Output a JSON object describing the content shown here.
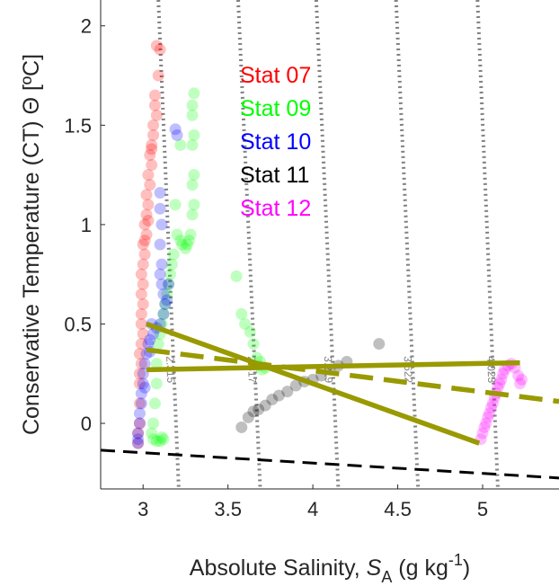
{
  "chart_data": {
    "type": "scatter",
    "xlabel": {
      "main": "Absolute Salinity, ",
      "sym": "S",
      "sub": "A",
      "unit_pre": " (g kg",
      "sup": "-1",
      "unit_post": ")"
    },
    "ylabel": "Conservative Temperature (CT) Θ [ºC]",
    "xlim": [
      2.75,
      5.45
    ],
    "ylim": [
      -0.33,
      2.13
    ],
    "xticks": [
      {
        "value": 3,
        "label": "3"
      },
      {
        "value": 3.5,
        "label": "3.5"
      },
      {
        "value": 4,
        "label": "4"
      },
      {
        "value": 4.5,
        "label": "4.5"
      },
      {
        "value": 5,
        "label": "5"
      }
    ],
    "yticks": [
      {
        "value": 0,
        "label": "0"
      },
      {
        "value": 0.5,
        "label": "0.5"
      },
      {
        "value": 1,
        "label": "1"
      },
      {
        "value": 1.5,
        "label": "1.5"
      },
      {
        "value": 2,
        "label": "2"
      }
    ],
    "grid": false,
    "legend_position": "top-center",
    "density_contours": [
      {
        "label": "2.315",
        "label_pos": [
          3.14,
          0.27
        ],
        "points": [
          [
            3.09,
            2.13
          ],
          [
            3.21,
            -0.33
          ]
        ]
      },
      {
        "label": "2.817",
        "label_pos": [
          3.62,
          0.27
        ],
        "points": [
          [
            3.56,
            2.13
          ],
          [
            3.69,
            -0.33
          ]
        ]
      },
      {
        "label": "3.219",
        "label_pos": [
          4.07,
          0.27
        ],
        "points": [
          [
            4.02,
            2.13
          ],
          [
            4.15,
            -0.33
          ]
        ]
      },
      {
        "label": "3.622",
        "label_pos": [
          4.54,
          0.27
        ],
        "points": [
          [
            4.49,
            2.13
          ],
          [
            4.62,
            -0.33
          ]
        ]
      },
      {
        "label": "4.023",
        "label_pos": [
          5.03,
          0.27
        ],
        "points": [
          [
            4.97,
            2.13
          ],
          [
            5.09,
            -0.33
          ]
        ]
      }
    ],
    "freezing_line": {
      "color": "#000000",
      "points": [
        [
          2.75,
          -0.135
        ],
        [
          5.45,
          -0.275
        ]
      ]
    },
    "mixing_lines": {
      "color": "#999900",
      "solid": [
        [
          [
            3.02,
            0.27
          ],
          [
            5.22,
            0.305
          ]
        ],
        [
          [
            3.02,
            0.5
          ],
          [
            4.98,
            -0.1
          ]
        ]
      ],
      "dashed": [
        [
          [
            3.02,
            0.37
          ],
          [
            5.45,
            0.11
          ]
        ]
      ]
    },
    "series": [
      {
        "name": "Stat 07",
        "color": "#ff0000",
        "points": [
          [
            3.08,
            1.9
          ],
          [
            3.1,
            1.88
          ],
          [
            3.09,
            1.75
          ],
          [
            3.07,
            1.6
          ],
          [
            3.08,
            1.55
          ],
          [
            3.06,
            1.45
          ],
          [
            3.05,
            1.4
          ],
          [
            3.04,
            1.35
          ],
          [
            3.05,
            1.3
          ],
          [
            3.03,
            1.25
          ],
          [
            3.04,
            1.2
          ],
          [
            3.02,
            1.15
          ],
          [
            3.03,
            1.1
          ],
          [
            3.02,
            1.05
          ],
          [
            3.01,
            1.0
          ],
          [
            3.02,
            0.95
          ],
          [
            3.0,
            0.9
          ],
          [
            3.01,
            0.85
          ],
          [
            3.0,
            0.8
          ],
          [
            2.99,
            0.75
          ],
          [
            3.0,
            0.7
          ],
          [
            2.99,
            0.65
          ],
          [
            3.0,
            0.6
          ],
          [
            2.99,
            0.55
          ],
          [
            2.99,
            0.5
          ],
          [
            3.0,
            0.45
          ],
          [
            2.99,
            0.4
          ],
          [
            2.98,
            0.35
          ],
          [
            2.99,
            0.3
          ],
          [
            2.98,
            0.25
          ],
          [
            2.98,
            0.2
          ],
          [
            2.98,
            0.1
          ],
          [
            2.98,
            0.0
          ],
          [
            2.97,
            -0.05
          ],
          [
            2.97,
            -0.1
          ],
          [
            3.06,
            1.5
          ],
          [
            3.05,
            1.38
          ],
          [
            3.07,
            1.65
          ],
          [
            3.01,
            0.92
          ],
          [
            3.03,
            1.02
          ]
        ]
      },
      {
        "name": "Stat 09",
        "color": "#00ff00",
        "points": [
          [
            3.3,
            1.66
          ],
          [
            3.29,
            1.6
          ],
          [
            3.29,
            1.55
          ],
          [
            3.3,
            1.45
          ],
          [
            3.29,
            1.4
          ],
          [
            3.3,
            1.25
          ],
          [
            3.29,
            1.2
          ],
          [
            3.3,
            1.1
          ],
          [
            3.29,
            1.05
          ],
          [
            3.28,
            0.95
          ],
          [
            3.27,
            0.92
          ],
          [
            3.26,
            0.9
          ],
          [
            3.25,
            0.88
          ],
          [
            3.23,
            0.9
          ],
          [
            3.22,
            0.92
          ],
          [
            3.2,
            0.95
          ],
          [
            3.18,
            0.85
          ],
          [
            3.17,
            0.8
          ],
          [
            3.16,
            0.75
          ],
          [
            3.15,
            0.7
          ],
          [
            3.14,
            0.65
          ],
          [
            3.13,
            0.6
          ],
          [
            3.12,
            0.55
          ],
          [
            3.11,
            0.5
          ],
          [
            3.1,
            0.45
          ],
          [
            3.09,
            0.4
          ],
          [
            3.08,
            0.3
          ],
          [
            3.08,
            0.2
          ],
          [
            3.07,
            0.1
          ],
          [
            3.06,
            0.0
          ],
          [
            3.05,
            -0.05
          ],
          [
            3.06,
            -0.08
          ],
          [
            3.08,
            -0.09
          ],
          [
            3.1,
            -0.09
          ],
          [
            3.11,
            -0.07
          ],
          [
            3.12,
            -0.08
          ],
          [
            3.55,
            0.74
          ],
          [
            3.58,
            0.55
          ],
          [
            3.6,
            0.5
          ],
          [
            3.63,
            0.46
          ],
          [
            3.65,
            0.4
          ],
          [
            3.67,
            0.33
          ],
          [
            3.68,
            0.29
          ],
          [
            3.7,
            0.27
          ],
          [
            3.72,
            0.28
          ],
          [
            3.69,
            0.31
          ],
          [
            3.22,
            1.4
          ],
          [
            3.19,
            1.1
          ]
        ]
      },
      {
        "name": "Stat 10",
        "color": "#0000ff",
        "points": [
          [
            3.1,
            1.16
          ],
          [
            3.1,
            1.08
          ],
          [
            3.11,
            1.0
          ],
          [
            3.1,
            0.9
          ],
          [
            3.11,
            0.8
          ],
          [
            3.1,
            0.75
          ],
          [
            3.11,
            0.7
          ],
          [
            3.12,
            0.65
          ],
          [
            3.13,
            0.6
          ],
          [
            3.12,
            0.55
          ],
          [
            3.1,
            0.5
          ],
          [
            3.08,
            0.48
          ],
          [
            3.06,
            0.45
          ],
          [
            3.04,
            0.42
          ],
          [
            3.03,
            0.4
          ],
          [
            3.02,
            0.35
          ],
          [
            3.01,
            0.3
          ],
          [
            3.0,
            0.25
          ],
          [
            3.0,
            0.2
          ],
          [
            2.99,
            0.15
          ],
          [
            2.99,
            0.1
          ],
          [
            2.98,
            0.05
          ],
          [
            2.98,
            0.0
          ],
          [
            2.97,
            -0.05
          ],
          [
            2.97,
            -0.08
          ],
          [
            2.97,
            -0.1
          ],
          [
            3.19,
            1.48
          ],
          [
            3.2,
            1.45
          ],
          [
            3.15,
            0.7
          ],
          [
            3.14,
            0.62
          ],
          [
            3.05,
            0.5
          ],
          [
            3.04,
            0.36
          ],
          [
            3.01,
            0.18
          ]
        ]
      },
      {
        "name": "Stat 11",
        "color": "#000000",
        "points": [
          [
            3.58,
            -0.02
          ],
          [
            3.62,
            0.03
          ],
          [
            3.65,
            0.06
          ],
          [
            3.68,
            0.07
          ],
          [
            3.72,
            0.09
          ],
          [
            3.76,
            0.12
          ],
          [
            3.8,
            0.14
          ],
          [
            3.85,
            0.16
          ],
          [
            3.9,
            0.19
          ],
          [
            3.95,
            0.21
          ],
          [
            4.0,
            0.22
          ],
          [
            4.05,
            0.24
          ],
          [
            4.1,
            0.27
          ],
          [
            4.15,
            0.29
          ],
          [
            4.2,
            0.31
          ],
          [
            4.39,
            0.4
          ]
        ]
      },
      {
        "name": "Stat 12",
        "color": "#ff00ff",
        "points": [
          [
            4.99,
            -0.08
          ],
          [
            5.0,
            -0.05
          ],
          [
            5.01,
            -0.02
          ],
          [
            5.02,
            0.0
          ],
          [
            5.03,
            0.03
          ],
          [
            5.04,
            0.05
          ],
          [
            5.05,
            0.08
          ],
          [
            5.06,
            0.1
          ],
          [
            5.07,
            0.13
          ],
          [
            5.08,
            0.15
          ],
          [
            5.09,
            0.18
          ],
          [
            5.1,
            0.2
          ],
          [
            5.11,
            0.22
          ],
          [
            5.12,
            0.25
          ],
          [
            5.13,
            0.27
          ],
          [
            5.15,
            0.29
          ],
          [
            5.17,
            0.3
          ],
          [
            5.19,
            0.28
          ],
          [
            5.21,
            0.24
          ],
          [
            5.22,
            0.2
          ],
          [
            5.23,
            0.22
          ]
        ]
      }
    ]
  }
}
